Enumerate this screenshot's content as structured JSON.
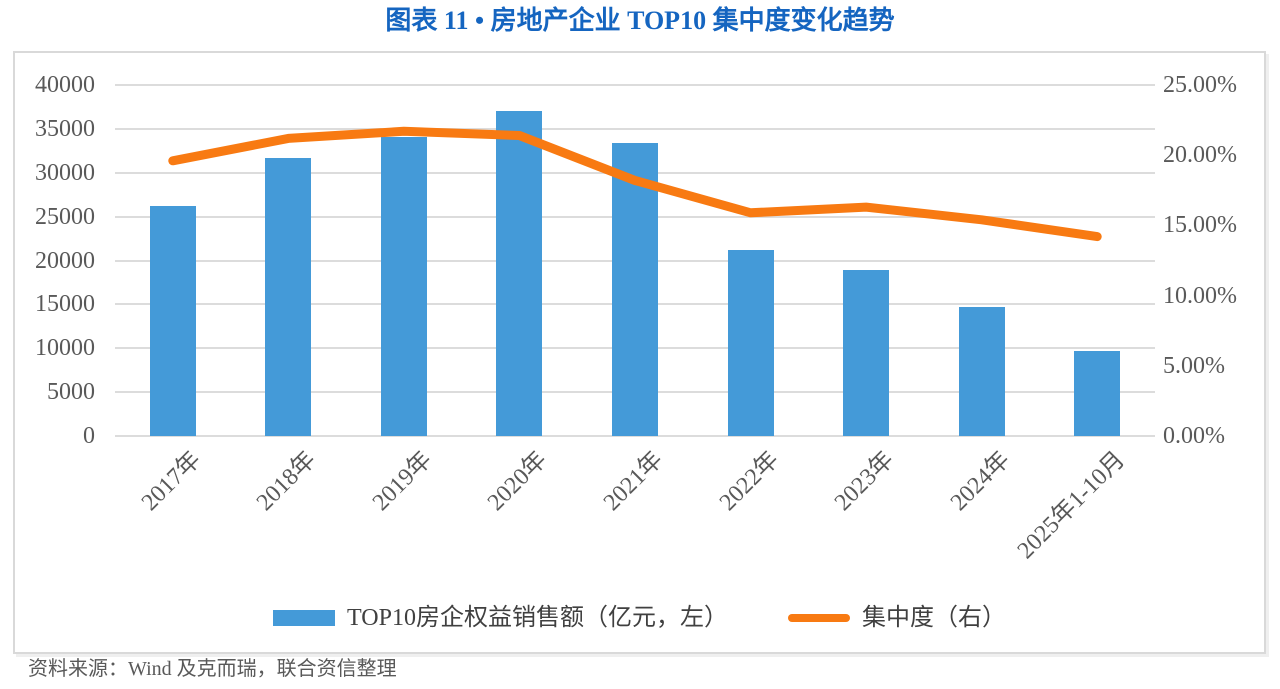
{
  "title": "图表 11 • 房地产企业 TOP10 集中度变化趋势",
  "source_note": "资料来源：Wind 及克而瑞，联合资信整理",
  "colors": {
    "title_blue": "#1565C0",
    "bar_blue": "#449AD8",
    "line_orange": "#F87A12",
    "grid_gray": "#DCDCDC",
    "axis_text_gray": "#595959",
    "frame_border": "#D9D9D9"
  },
  "legend": [
    {
      "label": "TOP10房企权益销售额（亿元，左）",
      "type": "bar"
    },
    {
      "label": "集中度（右）",
      "type": "line"
    }
  ],
  "chart_data": {
    "type": "bar",
    "subtype": "bar+line dual axis",
    "title": "图表 11 • 房地产企业 TOP10 集中度变化趋势",
    "categories": [
      "2017年",
      "2018年",
      "2019年",
      "2020年",
      "2021年",
      "2022年",
      "2023年",
      "2024年",
      "2025年1-10月"
    ],
    "series": [
      {
        "name": "TOP10房企权益销售额（亿元，左）",
        "type": "bar",
        "axis": "left",
        "values": [
          26200,
          31700,
          34100,
          37000,
          33400,
          21200,
          18900,
          14700,
          9700
        ]
      },
      {
        "name": "集中度（右）",
        "type": "line",
        "axis": "right",
        "unit": "%",
        "values": [
          19.6,
          21.2,
          21.7,
          21.4,
          18.2,
          15.9,
          16.3,
          15.4,
          14.2
        ]
      }
    ],
    "left_axis": {
      "min": 0,
      "max": 40000,
      "step": 5000,
      "ticks": [
        "40000",
        "35000",
        "30000",
        "25000",
        "20000",
        "15000",
        "10000",
        "5000",
        "0"
      ]
    },
    "right_axis": {
      "min": 0,
      "max": 25,
      "step": 5,
      "ticks": [
        "25.00%",
        "20.00%",
        "15.00%",
        "10.00%",
        "5.00%",
        "0.00%"
      ]
    },
    "grid": true,
    "legend_position": "bottom"
  }
}
